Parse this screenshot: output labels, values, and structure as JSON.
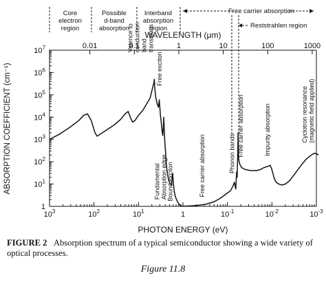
{
  "chart_data": {
    "type": "line",
    "x_scale": "log",
    "x_reversed": true,
    "y_scale": "log",
    "xlabel": "PHOTON ENERGY (eV)",
    "ylabel": "ABSORPTION COEFFICIENT (cm⁻¹)",
    "top_axis_label": "WAVELENGTH (μm)",
    "xlim": [
      1000,
      0.001
    ],
    "ylim": [
      1,
      10000000
    ],
    "x_ticks": [
      {
        "v": 1000,
        "b": "10",
        "e": "3"
      },
      {
        "v": 100,
        "b": "10",
        "e": "2"
      },
      {
        "v": 10,
        "b": "10",
        "e": "1"
      },
      {
        "v": 1,
        "b": "1",
        "e": ""
      },
      {
        "v": 0.1,
        "b": "10",
        "e": "-1"
      },
      {
        "v": 0.01,
        "b": "10",
        "e": "-2"
      },
      {
        "v": 0.001,
        "b": "10",
        "e": "-3"
      }
    ],
    "y_ticks": [
      {
        "v": 1,
        "b": "1",
        "e": ""
      },
      {
        "v": 10,
        "b": "10",
        "e": "1"
      },
      {
        "v": 100,
        "b": "10",
        "e": "2"
      },
      {
        "v": 1000,
        "b": "10",
        "e": "3"
      },
      {
        "v": 10000,
        "b": "10",
        "e": "4"
      },
      {
        "v": 100000,
        "b": "10",
        "e": "5"
      },
      {
        "v": 1000000,
        "b": "10",
        "e": "6"
      },
      {
        "v": 10000000,
        "b": "10",
        "e": "7"
      }
    ],
    "wavelength_ticks": [
      {
        "um": 0.01,
        "label": "0.01"
      },
      {
        "um": 0.1,
        "label": "0.1"
      },
      {
        "um": 1,
        "label": "1"
      },
      {
        "um": 10,
        "label": "10"
      },
      {
        "um": 100,
        "label": "100"
      },
      {
        "um": 1000,
        "label": "1000"
      }
    ],
    "series": [
      {
        "points": [
          [
            1000,
            1000
          ],
          [
            600,
            1700
          ],
          [
            350,
            3500
          ],
          [
            220,
            7000
          ],
          [
            170,
            12000
          ],
          [
            140,
            14000
          ],
          [
            115,
            7000
          ],
          [
            95,
            2000
          ],
          [
            85,
            1400
          ],
          [
            70,
            1800
          ],
          [
            50,
            2800
          ],
          [
            35,
            4500
          ],
          [
            25,
            8000
          ],
          [
            20,
            14000
          ],
          [
            17,
            18000
          ],
          [
            15,
            9000
          ],
          [
            13.5,
            6000
          ],
          [
            12,
            7000
          ],
          [
            10,
            12000
          ],
          [
            8,
            20000
          ],
          [
            6.5,
            40000
          ],
          [
            5.5,
            70000
          ],
          [
            5,
            150000
          ],
          [
            4.7,
            250000
          ],
          [
            4.5,
            350000
          ],
          [
            4.4,
            500000
          ],
          [
            4.3,
            200000
          ],
          [
            4.1,
            80000
          ],
          [
            3.8,
            40000
          ],
          [
            3.55,
            28000
          ],
          [
            3.4,
            60000
          ],
          [
            3.3,
            25000
          ],
          [
            3.2,
            12000
          ],
          [
            3.05,
            5000
          ],
          [
            2.95,
            2500
          ],
          [
            2.85,
            1500
          ],
          [
            2.75,
            4000
          ],
          [
            2.7,
            10000
          ],
          [
            2.64,
            3000
          ],
          [
            2.56,
            800
          ],
          [
            2.47,
            300
          ],
          [
            2.38,
            100
          ],
          [
            2.3,
            45
          ],
          [
            2.2,
            25
          ],
          [
            2.1,
            15
          ],
          [
            2.0,
            12
          ],
          [
            1.9,
            10
          ],
          [
            1.8,
            9
          ],
          [
            1.75,
            20
          ],
          [
            1.7,
            30
          ],
          [
            1.65,
            12
          ],
          [
            1.58,
            5
          ],
          [
            1.5,
            3
          ],
          [
            1.4,
            2
          ],
          [
            1.3,
            1.5
          ],
          [
            1.2,
            1.2
          ],
          [
            1.12,
            1.05
          ],
          [
            1.05,
            1.02
          ],
          [
            1,
            1.02
          ],
          [
            0.7,
            1.04
          ],
          [
            0.5,
            1.1
          ],
          [
            0.3,
            1.25
          ],
          [
            0.2,
            1.6
          ],
          [
            0.15,
            2.2
          ],
          [
            0.12,
            3
          ],
          [
            0.1,
            4
          ],
          [
            0.085,
            5
          ],
          [
            0.075,
            8
          ],
          [
            0.07,
            12
          ],
          [
            0.067,
            8
          ],
          [
            0.065,
            6
          ],
          [
            0.063,
            20
          ],
          [
            0.062,
            35
          ],
          [
            0.0605,
            20
          ],
          [
            0.059,
            150
          ],
          [
            0.058,
            800
          ],
          [
            0.0575,
            2000
          ],
          [
            0.057,
            1000
          ],
          [
            0.0563,
            300
          ],
          [
            0.0555,
            120
          ],
          [
            0.053,
            80
          ],
          [
            0.048,
            55
          ],
          [
            0.04,
            45
          ],
          [
            0.03,
            40
          ],
          [
            0.022,
            40
          ],
          [
            0.018,
            45
          ],
          [
            0.015,
            55
          ],
          [
            0.013,
            60
          ],
          [
            0.0115,
            65
          ],
          [
            0.011,
            70
          ],
          [
            0.0102,
            50
          ],
          [
            0.0095,
            30
          ],
          [
            0.009,
            20
          ],
          [
            0.0085,
            15
          ],
          [
            0.008,
            12
          ],
          [
            0.007,
            10
          ],
          [
            0.006,
            9
          ],
          [
            0.005,
            10
          ],
          [
            0.004,
            14
          ],
          [
            0.003,
            30
          ],
          [
            0.0022,
            70
          ],
          [
            0.0017,
            130
          ],
          [
            0.0013,
            200
          ],
          [
            0.0011,
            240
          ],
          [
            0.00095,
            220
          ],
          [
            0.0009,
            200
          ]
        ]
      }
    ],
    "top_regions": [
      {
        "label_lines": [
          "Core",
          "electron",
          "region"
        ]
      },
      {
        "label_lines": [
          "Possible",
          "d-band",
          "absorption"
        ]
      },
      {
        "label_lines": [
          "Interband",
          "absorption",
          "region"
        ]
      }
    ],
    "top_arrow_labels": [
      "Free carrier absorption",
      "Reststrahlen region"
    ],
    "annotations": [
      {
        "lines": [
          "Valence to",
          "conduction",
          "band",
          "transitions"
        ],
        "x": 4.7,
        "y": 8000000
      },
      {
        "lines": [
          "Free exciton"
        ],
        "x": 3.0,
        "y": 250000
      },
      {
        "lines": [
          "Fundamental",
          "Absorption edge"
        ],
        "x": 2.4,
        "y": 2
      },
      {
        "lines": [
          "Bound exciton"
        ],
        "x": 1.75,
        "y": 1.7
      },
      {
        "lines": [
          "Free carrier absorption"
        ],
        "x": 0.33,
        "y": 2.6
      },
      {
        "lines": [
          "Phonon bands"
        ],
        "x": 0.07,
        "y": 30
      },
      {
        "lines": [
          "Free carrier absorption"
        ],
        "x": 0.045,
        "y": 160
      },
      {
        "lines": [
          "Impurity absorption"
        ],
        "x": 0.0112,
        "y": 180
      },
      {
        "lines": [
          "Cyclotron resonance",
          "(magnetic field applied)"
        ],
        "x": 0.00115,
        "y": 700
      }
    ]
  },
  "caption": {
    "label": "FIGURE 2",
    "text": "Absorption spectrum of a typical semiconductor showing a wide variety of optical processes."
  },
  "figure_label": "Figure 11.8"
}
